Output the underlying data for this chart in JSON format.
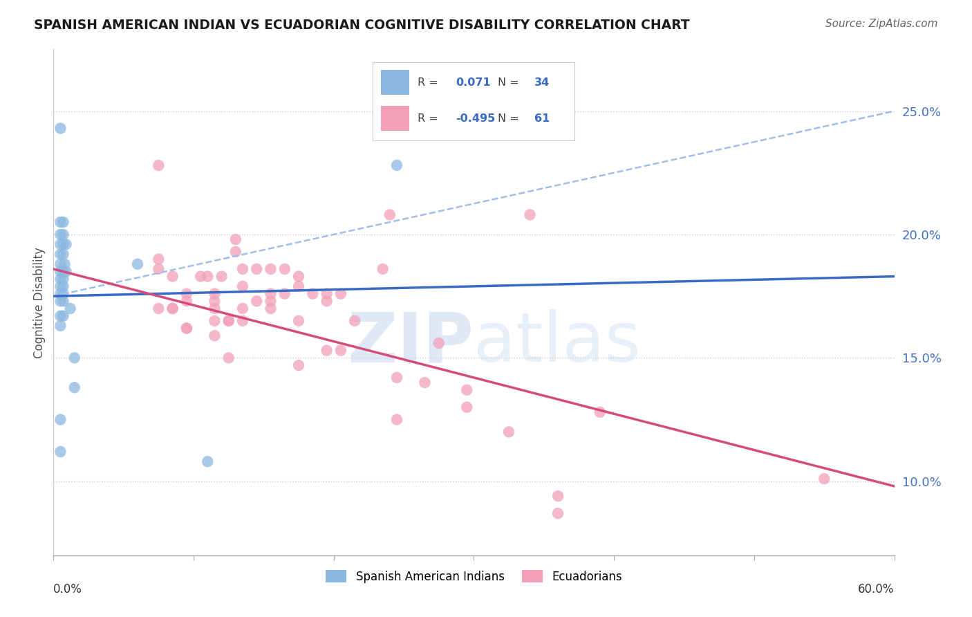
{
  "title": "SPANISH AMERICAN INDIAN VS ECUADORIAN COGNITIVE DISABILITY CORRELATION CHART",
  "source": "Source: ZipAtlas.com",
  "ylabel": "Cognitive Disability",
  "ytick_labels": [
    "10.0%",
    "15.0%",
    "20.0%",
    "25.0%"
  ],
  "ytick_values": [
    0.1,
    0.15,
    0.2,
    0.25
  ],
  "xlim": [
    0.0,
    0.6
  ],
  "ylim": [
    0.07,
    0.275
  ],
  "watermark": "ZIPatlas",
  "legend_blue_r": "0.071",
  "legend_blue_n": "34",
  "legend_pink_r": "-0.495",
  "legend_pink_n": "61",
  "blue_scatter": [
    [
      0.005,
      0.243
    ],
    [
      0.005,
      0.205
    ],
    [
      0.007,
      0.205
    ],
    [
      0.005,
      0.2
    ],
    [
      0.007,
      0.2
    ],
    [
      0.005,
      0.196
    ],
    [
      0.007,
      0.196
    ],
    [
      0.009,
      0.196
    ],
    [
      0.005,
      0.192
    ],
    [
      0.007,
      0.192
    ],
    [
      0.005,
      0.188
    ],
    [
      0.008,
      0.188
    ],
    [
      0.005,
      0.185
    ],
    [
      0.007,
      0.185
    ],
    [
      0.009,
      0.185
    ],
    [
      0.005,
      0.182
    ],
    [
      0.007,
      0.182
    ],
    [
      0.005,
      0.179
    ],
    [
      0.007,
      0.179
    ],
    [
      0.005,
      0.176
    ],
    [
      0.007,
      0.176
    ],
    [
      0.005,
      0.173
    ],
    [
      0.007,
      0.173
    ],
    [
      0.012,
      0.17
    ],
    [
      0.005,
      0.167
    ],
    [
      0.007,
      0.167
    ],
    [
      0.06,
      0.188
    ],
    [
      0.245,
      0.228
    ],
    [
      0.015,
      0.15
    ],
    [
      0.015,
      0.138
    ],
    [
      0.005,
      0.125
    ],
    [
      0.005,
      0.112
    ],
    [
      0.11,
      0.108
    ],
    [
      0.005,
      0.163
    ]
  ],
  "pink_scatter": [
    [
      0.075,
      0.228
    ],
    [
      0.24,
      0.208
    ],
    [
      0.34,
      0.208
    ],
    [
      0.13,
      0.198
    ],
    [
      0.13,
      0.193
    ],
    [
      0.075,
      0.19
    ],
    [
      0.075,
      0.186
    ],
    [
      0.145,
      0.186
    ],
    [
      0.155,
      0.186
    ],
    [
      0.11,
      0.183
    ],
    [
      0.12,
      0.183
    ],
    [
      0.175,
      0.183
    ],
    [
      0.175,
      0.179
    ],
    [
      0.135,
      0.179
    ],
    [
      0.095,
      0.176
    ],
    [
      0.115,
      0.176
    ],
    [
      0.155,
      0.176
    ],
    [
      0.165,
      0.176
    ],
    [
      0.195,
      0.176
    ],
    [
      0.205,
      0.176
    ],
    [
      0.095,
      0.173
    ],
    [
      0.115,
      0.173
    ],
    [
      0.155,
      0.173
    ],
    [
      0.085,
      0.17
    ],
    [
      0.115,
      0.17
    ],
    [
      0.135,
      0.17
    ],
    [
      0.135,
      0.165
    ],
    [
      0.175,
      0.165
    ],
    [
      0.215,
      0.165
    ],
    [
      0.095,
      0.162
    ],
    [
      0.115,
      0.159
    ],
    [
      0.275,
      0.156
    ],
    [
      0.195,
      0.153
    ],
    [
      0.205,
      0.153
    ],
    [
      0.125,
      0.15
    ],
    [
      0.175,
      0.147
    ],
    [
      0.245,
      0.142
    ],
    [
      0.265,
      0.14
    ],
    [
      0.295,
      0.137
    ],
    [
      0.39,
      0.128
    ],
    [
      0.55,
      0.101
    ],
    [
      0.325,
      0.12
    ],
    [
      0.245,
      0.125
    ],
    [
      0.36,
      0.094
    ],
    [
      0.36,
      0.087
    ],
    [
      0.125,
      0.165
    ],
    [
      0.135,
      0.186
    ],
    [
      0.075,
      0.17
    ],
    [
      0.235,
      0.186
    ],
    [
      0.085,
      0.183
    ],
    [
      0.095,
      0.162
    ],
    [
      0.115,
      0.165
    ],
    [
      0.155,
      0.17
    ],
    [
      0.185,
      0.176
    ],
    [
      0.195,
      0.173
    ],
    [
      0.125,
      0.165
    ],
    [
      0.145,
      0.173
    ],
    [
      0.165,
      0.186
    ],
    [
      0.085,
      0.17
    ],
    [
      0.105,
      0.183
    ],
    [
      0.295,
      0.13
    ]
  ],
  "blue_line_x": [
    0.0,
    0.6
  ],
  "blue_line_y": [
    0.175,
    0.183
  ],
  "blue_dashed_line_x": [
    0.0,
    0.6
  ],
  "blue_dashed_line_y": [
    0.175,
    0.25
  ],
  "pink_line_x": [
    0.0,
    0.6
  ],
  "pink_line_y": [
    0.186,
    0.098
  ],
  "blue_color": "#8BB8E0",
  "pink_color": "#F2A0B8",
  "blue_line_color": "#3A6BC4",
  "pink_line_color": "#D44C7A",
  "dashed_line_color": "#A0BEE8",
  "grid_color": "#cccccc",
  "spine_color": "#cccccc"
}
